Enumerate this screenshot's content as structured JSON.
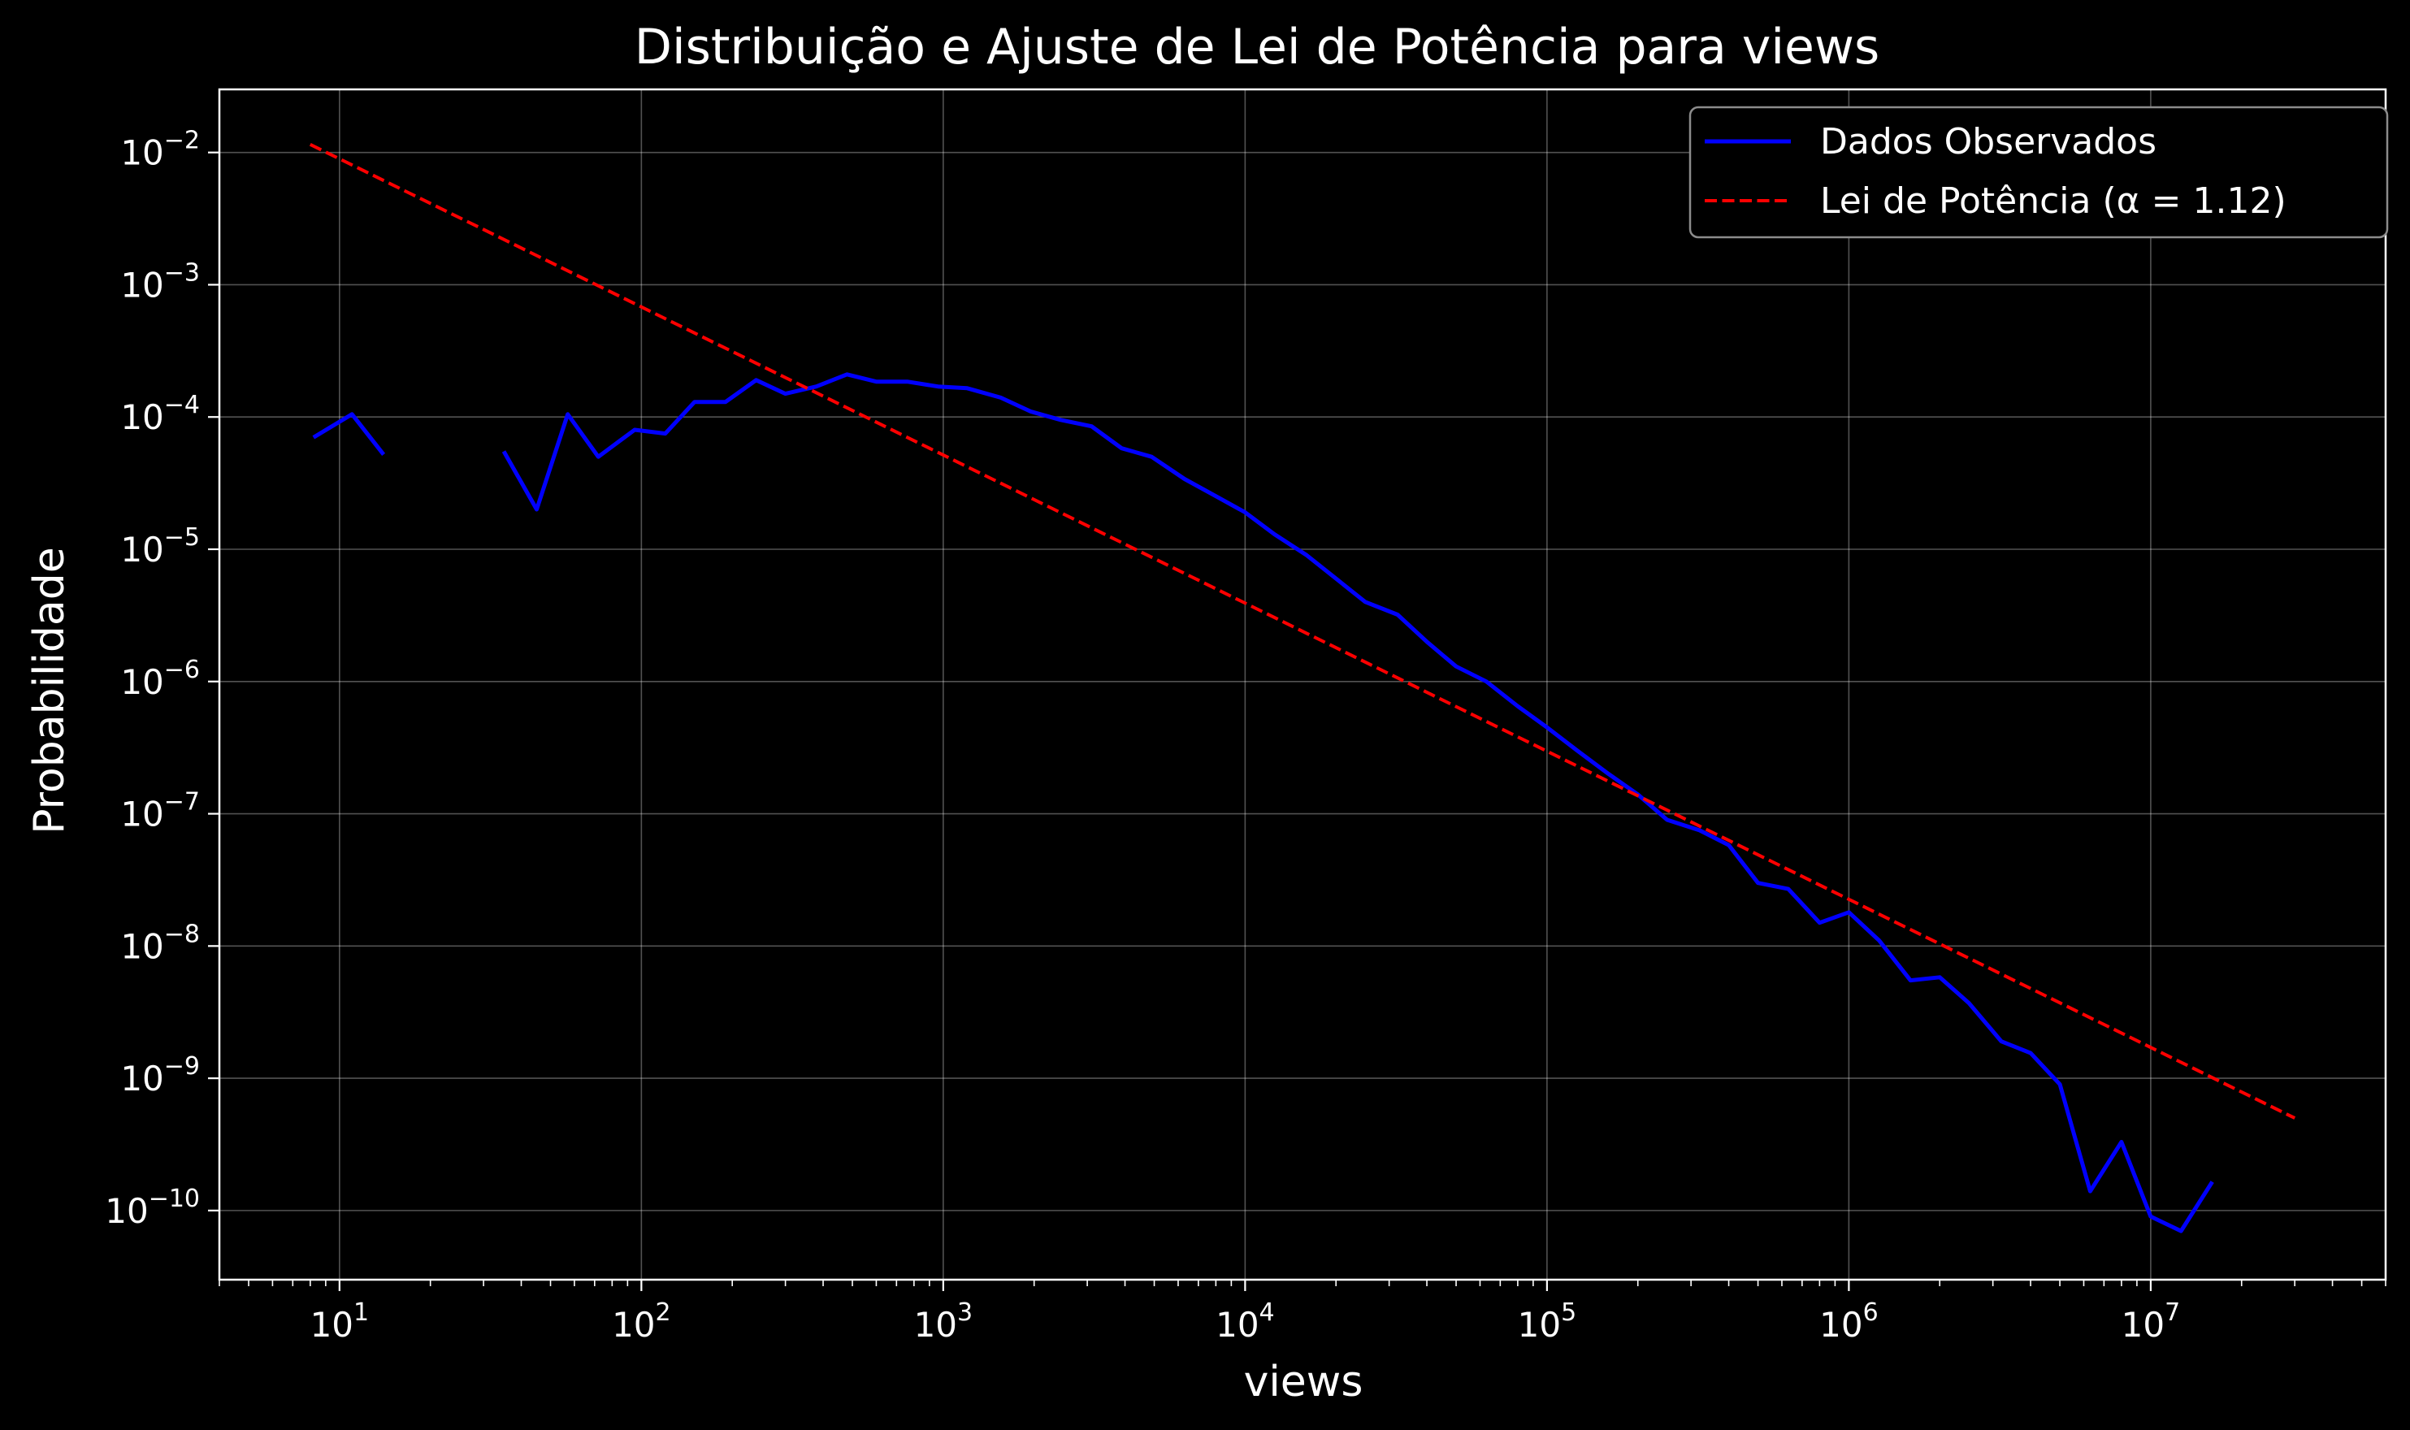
{
  "chart_data": {
    "type": "line",
    "title": "Distribuição e Ajuste de Lei de Potência para views",
    "xlabel": "views",
    "ylabel": "Probabilidade",
    "xscale": "log",
    "yscale": "log",
    "xlim": [
      4,
      60000000
    ],
    "ylim": [
      3e-11,
      0.03
    ],
    "grid": true,
    "legend_position": "top-right",
    "x_ticks": [
      {
        "value": 10,
        "base": "10",
        "exp": "1"
      },
      {
        "value": 100,
        "base": "10",
        "exp": "2"
      },
      {
        "value": 1000,
        "base": "10",
        "exp": "3"
      },
      {
        "value": 10000,
        "base": "10",
        "exp": "4"
      },
      {
        "value": 100000,
        "base": "10",
        "exp": "5"
      },
      {
        "value": 1000000,
        "base": "10",
        "exp": "6"
      },
      {
        "value": 10000000,
        "base": "10",
        "exp": "7"
      }
    ],
    "y_ticks": [
      {
        "value": 0.01,
        "base": "10",
        "exp": "−2"
      },
      {
        "value": 0.001,
        "base": "10",
        "exp": "−3"
      },
      {
        "value": 0.0001,
        "base": "10",
        "exp": "−4"
      },
      {
        "value": 1e-05,
        "base": "10",
        "exp": "−5"
      },
      {
        "value": 1e-06,
        "base": "10",
        "exp": "−6"
      },
      {
        "value": 1e-07,
        "base": "10",
        "exp": "−7"
      },
      {
        "value": 1e-08,
        "base": "10",
        "exp": "−8"
      },
      {
        "value": 1e-09,
        "base": "10",
        "exp": "−9"
      },
      {
        "value": 1e-10,
        "base": "10",
        "exp": "−10"
      }
    ],
    "series": [
      {
        "name": "Dados Observados",
        "color": "#0000ff",
        "style": "solid",
        "segments": [
          [
            [
              8.2,
              7e-05
            ],
            [
              11,
              0.000105
            ],
            [
              14,
              5.2e-05
            ]
          ],
          [
            [
              35,
              5.5e-05
            ],
            [
              45,
              2e-05
            ],
            [
              57,
              0.000105
            ],
            [
              72,
              5e-05
            ],
            [
              95,
              8e-05
            ],
            [
              120,
              7.5e-05
            ],
            [
              150,
              0.00013
            ],
            [
              190,
              0.00013
            ],
            [
              240,
              0.00019
            ],
            [
              300,
              0.00015
            ],
            [
              380,
              0.00017
            ],
            [
              480,
              0.00021
            ],
            [
              600,
              0.000185
            ],
            [
              760,
              0.000185
            ],
            [
              960,
              0.00017
            ],
            [
              1200,
              0.000165
            ],
            [
              1550,
              0.00014
            ],
            [
              1950,
              0.00011
            ],
            [
              2450,
              9.5e-05
            ],
            [
              3100,
              8.5e-05
            ],
            [
              3900,
              5.8e-05
            ],
            [
              4900,
              5e-05
            ],
            [
              6300,
              3.4e-05
            ],
            [
              7800,
              2.6e-05
            ],
            [
              10000,
              1.9e-05
            ],
            [
              12500,
              1.3e-05
            ],
            [
              16000,
              9e-06
            ],
            [
              20000,
              6e-06
            ],
            [
              25000,
              4e-06
            ],
            [
              32000,
              3.2e-06
            ],
            [
              40000,
              2e-06
            ],
            [
              50000,
              1.3e-06
            ],
            [
              63000,
              1e-06
            ],
            [
              80000,
              6.5e-07
            ],
            [
              100000,
              4.5e-07
            ],
            [
              126000,
              3e-07
            ],
            [
              160000,
              2e-07
            ],
            [
              200000,
              1.4e-07
            ],
            [
              250000,
              9e-08
            ],
            [
              320000,
              7.5e-08
            ],
            [
              400000,
              5.8e-08
            ],
            [
              500000,
              3e-08
            ],
            [
              630000,
              2.7e-08
            ],
            [
              800000,
              1.5e-08
            ],
            [
              1000000,
              1.8e-08
            ],
            [
              1260000,
              1.1e-08
            ],
            [
              1600000,
              5.5e-09
            ],
            [
              2000000,
              5.8e-09
            ],
            [
              2500000,
              3.7e-09
            ],
            [
              3200000,
              1.9e-09
            ],
            [
              4000000,
              1.55e-09
            ],
            [
              5000000,
              9e-10
            ],
            [
              6300000,
              1.4e-10
            ],
            [
              8000000,
              3.3e-10
            ],
            [
              10000000,
              9e-11
            ],
            [
              12600000,
              7e-11
            ],
            [
              16000000,
              1.65e-10
            ]
          ]
        ]
      },
      {
        "name": "Lei de Potência (α = 1.12)",
        "color": "#ff0000",
        "style": "dashed",
        "segments": [
          [
            [
              8,
              0.0115
            ],
            [
              30000000,
              5e-10
            ]
          ]
        ]
      }
    ]
  }
}
